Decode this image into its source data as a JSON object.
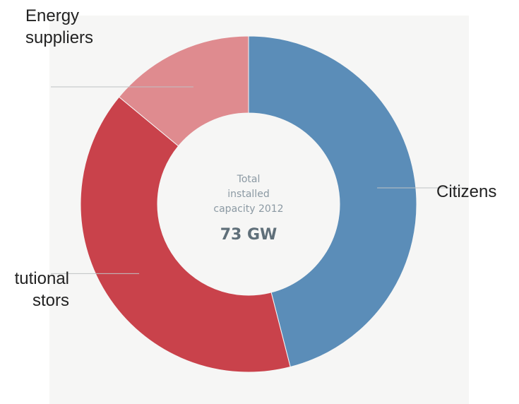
{
  "chart_data": {
    "type": "pie",
    "variant": "donut",
    "title": "",
    "center_text": [
      "Total",
      "installed",
      "capacity 2012"
    ],
    "center_value": "73 GW",
    "slices": [
      {
        "label": "Citizens",
        "share": 0.46,
        "color": "#5b8db8"
      },
      {
        "label": "Institutional investors",
        "label_lines": [
          "tutional",
          "stors"
        ],
        "share": 0.4,
        "color": "#c9424b"
      },
      {
        "label": "Energy suppliers",
        "label_lines": [
          "Energy",
          "suppliers"
        ],
        "share": 0.14,
        "color": "#df8b8f"
      }
    ],
    "legend": "callout labels with leader lines"
  },
  "colors": {
    "background": "#ffffff",
    "panel": "#f6f6f5",
    "leader_line": "#bfc2c4",
    "label_text": "#222222"
  }
}
